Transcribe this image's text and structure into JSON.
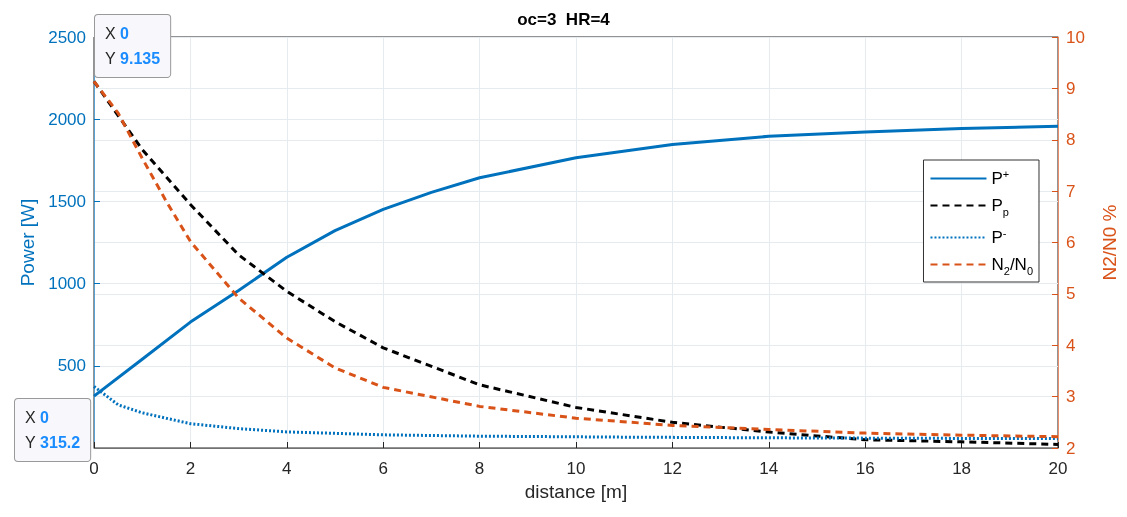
{
  "chart_data": {
    "type": "line",
    "title": "oc=3  HR=4",
    "xlabel": "distance [m]",
    "ylabel": "Power [W]",
    "y2label": "N2/N0 %",
    "xlim": [
      0,
      20
    ],
    "xticks": [
      0,
      2,
      4,
      6,
      8,
      10,
      12,
      14,
      16,
      18,
      20
    ],
    "ylim": [
      0,
      2500
    ],
    "yticks": [
      500,
      1000,
      1500,
      2000,
      2500
    ],
    "y2lim": [
      2,
      10
    ],
    "y2ticks": [
      2,
      3,
      4,
      5,
      6,
      7,
      8,
      9,
      10
    ],
    "grid": true,
    "legend": "right",
    "marker": "none",
    "series": [
      {
        "name": "P$^{+}$",
        "color": "#0072bd",
        "line_style": "solid",
        "x": [
          0,
          1,
          2,
          3,
          4,
          5,
          6,
          7,
          8,
          10,
          12,
          14,
          16,
          18,
          20
        ],
        "values": [
          315.2,
          540,
          766,
          958,
          1160,
          1322,
          1452,
          1555,
          1644,
          1765,
          1846,
          1896,
          1922,
          1943,
          1957
        ]
      },
      {
        "name": "P$_{p}$",
        "color": "#000000",
        "line_style": "dashed",
        "axis": "y2",
        "x": [
          0,
          1,
          2,
          3,
          4,
          5,
          6,
          8,
          10,
          12,
          14,
          16,
          18,
          20
        ],
        "values": [
          9.135,
          7.81,
          6.74,
          5.76,
          5.05,
          4.46,
          3.95,
          3.23,
          2.79,
          2.5,
          2.31,
          2.16,
          2.12,
          2.07
        ]
      },
      {
        "name": "P$^{-}$",
        "color": "#0072bd",
        "line_style": "dotted",
        "x": [
          0,
          0.5,
          1,
          2,
          3,
          4,
          6,
          8,
          11,
          14,
          17,
          20
        ],
        "values": [
          374,
          263,
          214,
          148,
          118,
          98,
          80,
          72,
          66,
          62,
          59,
          57
        ]
      },
      {
        "name": "N$_{2}$/N$_{0}$",
        "color": "#d95319",
        "line_style": "dashed",
        "axis": "y2",
        "x": [
          0,
          0.5,
          1,
          1.5,
          2,
          3,
          4,
          5,
          6,
          8,
          10,
          12,
          14,
          16,
          18,
          20
        ],
        "values": [
          9.135,
          8.52,
          7.64,
          6.8,
          6.02,
          4.92,
          4.14,
          3.56,
          3.18,
          2.81,
          2.58,
          2.44,
          2.36,
          2.29,
          2.25,
          2.22
        ]
      }
    ],
    "annotations": [
      "X 0\nY 9.135",
      "X 0\nY 315.2"
    ]
  }
}
